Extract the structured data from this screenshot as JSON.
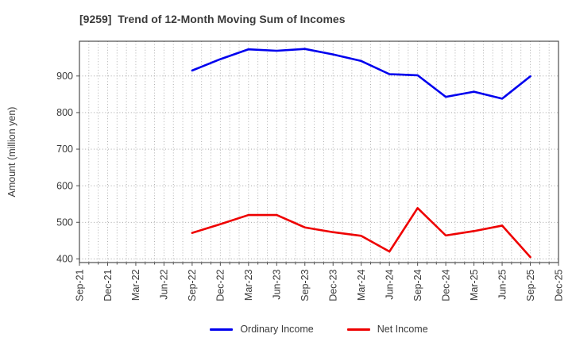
{
  "title": "[9259]  Trend of 12-Month Moving Sum of Incomes",
  "chart_data": {
    "type": "line",
    "title": "[9259]  Trend of 12-Month Moving Sum of Incomes",
    "ylabel": "Amount (million yen)",
    "xlabel": "",
    "ylim": [
      390,
      995
    ],
    "yticks": [
      400,
      500,
      600,
      700,
      800,
      900
    ],
    "grid": true,
    "minor_vertical_gridlines_per_quarter": 3,
    "legend_position": "bottom-center",
    "categories": [
      "Sep-21",
      "Dec-21",
      "Mar-22",
      "Jun-22",
      "Sep-22",
      "Dec-22",
      "Mar-23",
      "Jun-23",
      "Sep-23",
      "Dec-23",
      "Mar-24",
      "Jun-24",
      "Sep-24",
      "Dec-24",
      "Mar-25",
      "Jun-25",
      "Sep-25",
      "Dec-25"
    ],
    "series": [
      {
        "name": "Ordinary Income",
        "color": "#0000ee",
        "values": [
          null,
          null,
          null,
          null,
          915,
          946,
          973,
          969,
          974,
          959,
          941,
          905,
          902,
          843,
          857,
          838,
          899,
          null
        ]
      },
      {
        "name": "Net Income",
        "color": "#ee0000",
        "values": [
          null,
          null,
          null,
          null,
          471,
          495,
          520,
          520,
          486,
          473,
          463,
          420,
          539,
          464,
          476,
          491,
          405,
          null
        ]
      }
    ]
  },
  "style": {
    "grid_color": "#a6a6a6",
    "spine_color": "#4d4d4d",
    "tick_label_color": "#3a3a3a"
  }
}
